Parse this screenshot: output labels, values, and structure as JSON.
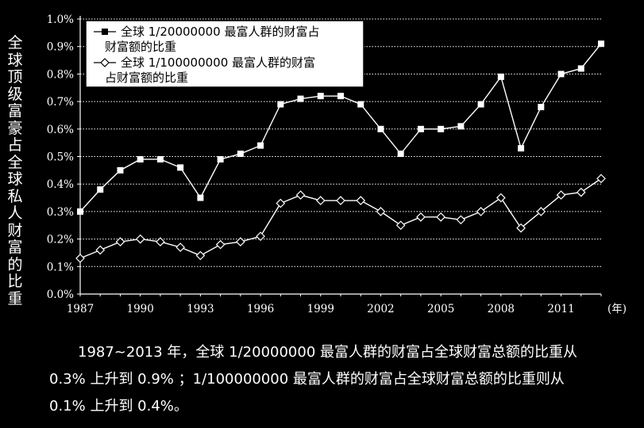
{
  "chart_data": {
    "type": "line",
    "ylabel": "全球顶级富豪占全球私人财富的比重",
    "xunit": "(年)",
    "x": [
      1987,
      1988,
      1989,
      1990,
      1991,
      1992,
      1993,
      1994,
      1995,
      1996,
      1997,
      1998,
      1999,
      2000,
      2001,
      2002,
      2003,
      2004,
      2005,
      2006,
      2007,
      2008,
      2009,
      2010,
      2011,
      2012,
      2013
    ],
    "xticks": [
      1987,
      1990,
      1993,
      1996,
      1999,
      2002,
      2005,
      2008,
      2011
    ],
    "yticks": [
      "0.0%",
      "0.1%",
      "0.2%",
      "0.3%",
      "0.4%",
      "0.5%",
      "0.6%",
      "0.7%",
      "0.8%",
      "0.9%",
      "1.0%"
    ],
    "ylim": [
      0,
      1.0
    ],
    "xlim": [
      1987,
      2013
    ],
    "grid": "horizontal dotted",
    "legend_position": "top-left",
    "series": [
      {
        "name": "全球 1/20000000 最富人群的财富占财富额的比重",
        "legend_lines": [
          "全球 1/20000000 最富人群的财富占",
          "财富额的比重"
        ],
        "marker": "filled-square",
        "values": [
          0.3,
          0.38,
          0.45,
          0.49,
          0.49,
          0.46,
          0.35,
          0.49,
          0.51,
          0.54,
          0.69,
          0.71,
          0.72,
          0.72,
          0.69,
          0.6,
          0.51,
          0.6,
          0.6,
          0.61,
          0.69,
          0.79,
          0.53,
          0.68,
          0.8,
          0.82,
          0.91
        ]
      },
      {
        "name": "全球 1/100000000 最富人群的财富占财富额的比重",
        "legend_lines": [
          "全球 1/100000000 最富人群的财富",
          "占财富额的比重"
        ],
        "marker": "open-diamond",
        "values": [
          0.13,
          0.16,
          0.19,
          0.2,
          0.19,
          0.17,
          0.14,
          0.18,
          0.19,
          0.21,
          0.33,
          0.36,
          0.34,
          0.34,
          0.34,
          0.3,
          0.25,
          0.28,
          0.28,
          0.27,
          0.3,
          0.35,
          0.24,
          0.3,
          0.36,
          0.37,
          0.42
        ]
      }
    ]
  },
  "caption": "1987~2013 年，全球 1/20000000 最富人群的财富占全球财富总额的比重从 0.3% 上升到 0.9% ；1/100000000 最富人群的财富占全球财富总额的比重则从 0.1% 上升到 0.4%。"
}
